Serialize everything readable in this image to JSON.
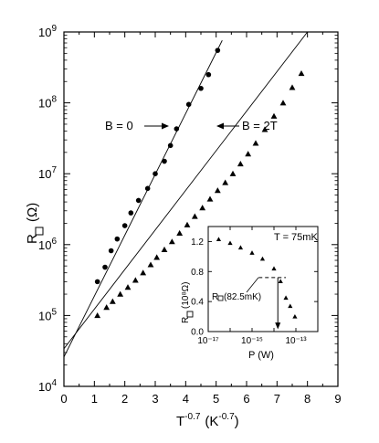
{
  "chart_data": [
    {
      "type": "scatter",
      "title": "",
      "xlabel": "T",
      "xlabel_sup": "-0.7",
      "xlabel_unit": "(K",
      "xlabel_unit_sup": "-0.7",
      "xlabel_close": ")",
      "ylabel": "R",
      "ylabel_unit": "(Ω)",
      "x_ticks": [
        0,
        1,
        2,
        3,
        4,
        5,
        6,
        7,
        8,
        9
      ],
      "xlim": [
        0,
        9
      ],
      "ylim": [
        10000,
        1000000000
      ],
      "y_scale": "log",
      "y_tick_exponents": [
        4,
        5,
        6,
        7,
        8,
        9
      ],
      "y_tick_base": "10",
      "grid": false,
      "series": [
        {
          "name": "B = 0",
          "marker": "circle",
          "x": [
            1.1,
            1.35,
            1.55,
            1.75,
            2.0,
            2.2,
            2.45,
            2.75,
            3.0,
            3.3,
            3.5,
            3.7,
            4.1,
            4.5,
            4.75,
            5.05
          ],
          "y": [
            300000,
            480000,
            820000,
            1200000,
            1850000,
            2800000,
            4200000,
            6200000,
            10000000,
            15000000,
            25000000,
            43000000,
            95000000,
            160000000,
            250000000,
            550000000
          ],
          "fit_line": {
            "x": [
              0,
              5.2
            ],
            "y": [
              26000,
              760000000
            ]
          }
        },
        {
          "name": "B = 2T",
          "marker": "triangle",
          "x": [
            1.1,
            1.4,
            1.6,
            1.85,
            2.1,
            2.35,
            2.6,
            2.85,
            3.05,
            3.3,
            3.55,
            3.8,
            4.05,
            4.3,
            4.55,
            4.8,
            5.05,
            5.3,
            5.55,
            5.8,
            6.05,
            6.3,
            6.6,
            6.9,
            7.2,
            7.5,
            7.8
          ],
          "y": [
            100000,
            130000,
            158000,
            200000,
            250000,
            315000,
            400000,
            520000,
            660000,
            850000,
            1100000,
            1450000,
            1900000,
            2500000,
            3300000,
            4400000,
            5800000,
            7500000,
            10000000,
            13800000,
            19000000,
            27000000,
            42000000,
            65000000,
            100000000,
            165000000,
            260000000
          ],
          "fit_line": {
            "x": [
              0,
              8.0
            ],
            "y": [
              34000,
              1000000000
            ]
          }
        }
      ],
      "annotations": [
        "B = 0",
        "B = 2T"
      ]
    },
    {
      "type": "scatter",
      "title": "T = 75mK",
      "xlabel": "P (W)",
      "ylabel": "R",
      "ylabel_unit": "(10⁸Ω)",
      "x_scale": "log",
      "xlim": [
        1e-17,
        1e-12
      ],
      "x_tick_labels": [
        "10⁻¹⁷",
        "10⁻¹⁵",
        "10⁻¹³"
      ],
      "ylim": [
        0,
        1.4
      ],
      "y_ticks": [
        "0.0",
        "0.4",
        "0.8",
        "1.2"
      ],
      "series": [
        {
          "name": "",
          "marker": "triangle",
          "x": [
            3e-17,
            1e-16,
            3e-16,
            1e-15,
            3e-15,
            1e-14,
            2e-14,
            3.5e-14,
            5.5e-14,
            9e-14
          ],
          "y": [
            1.23,
            1.18,
            1.12,
            1.05,
            0.97,
            0.84,
            0.67,
            0.45,
            0.34,
            0.2
          ]
        }
      ],
      "reference_label": "R",
      "reference_label_sub": "(82.5mK)",
      "reference_value": 0.72
    }
  ]
}
